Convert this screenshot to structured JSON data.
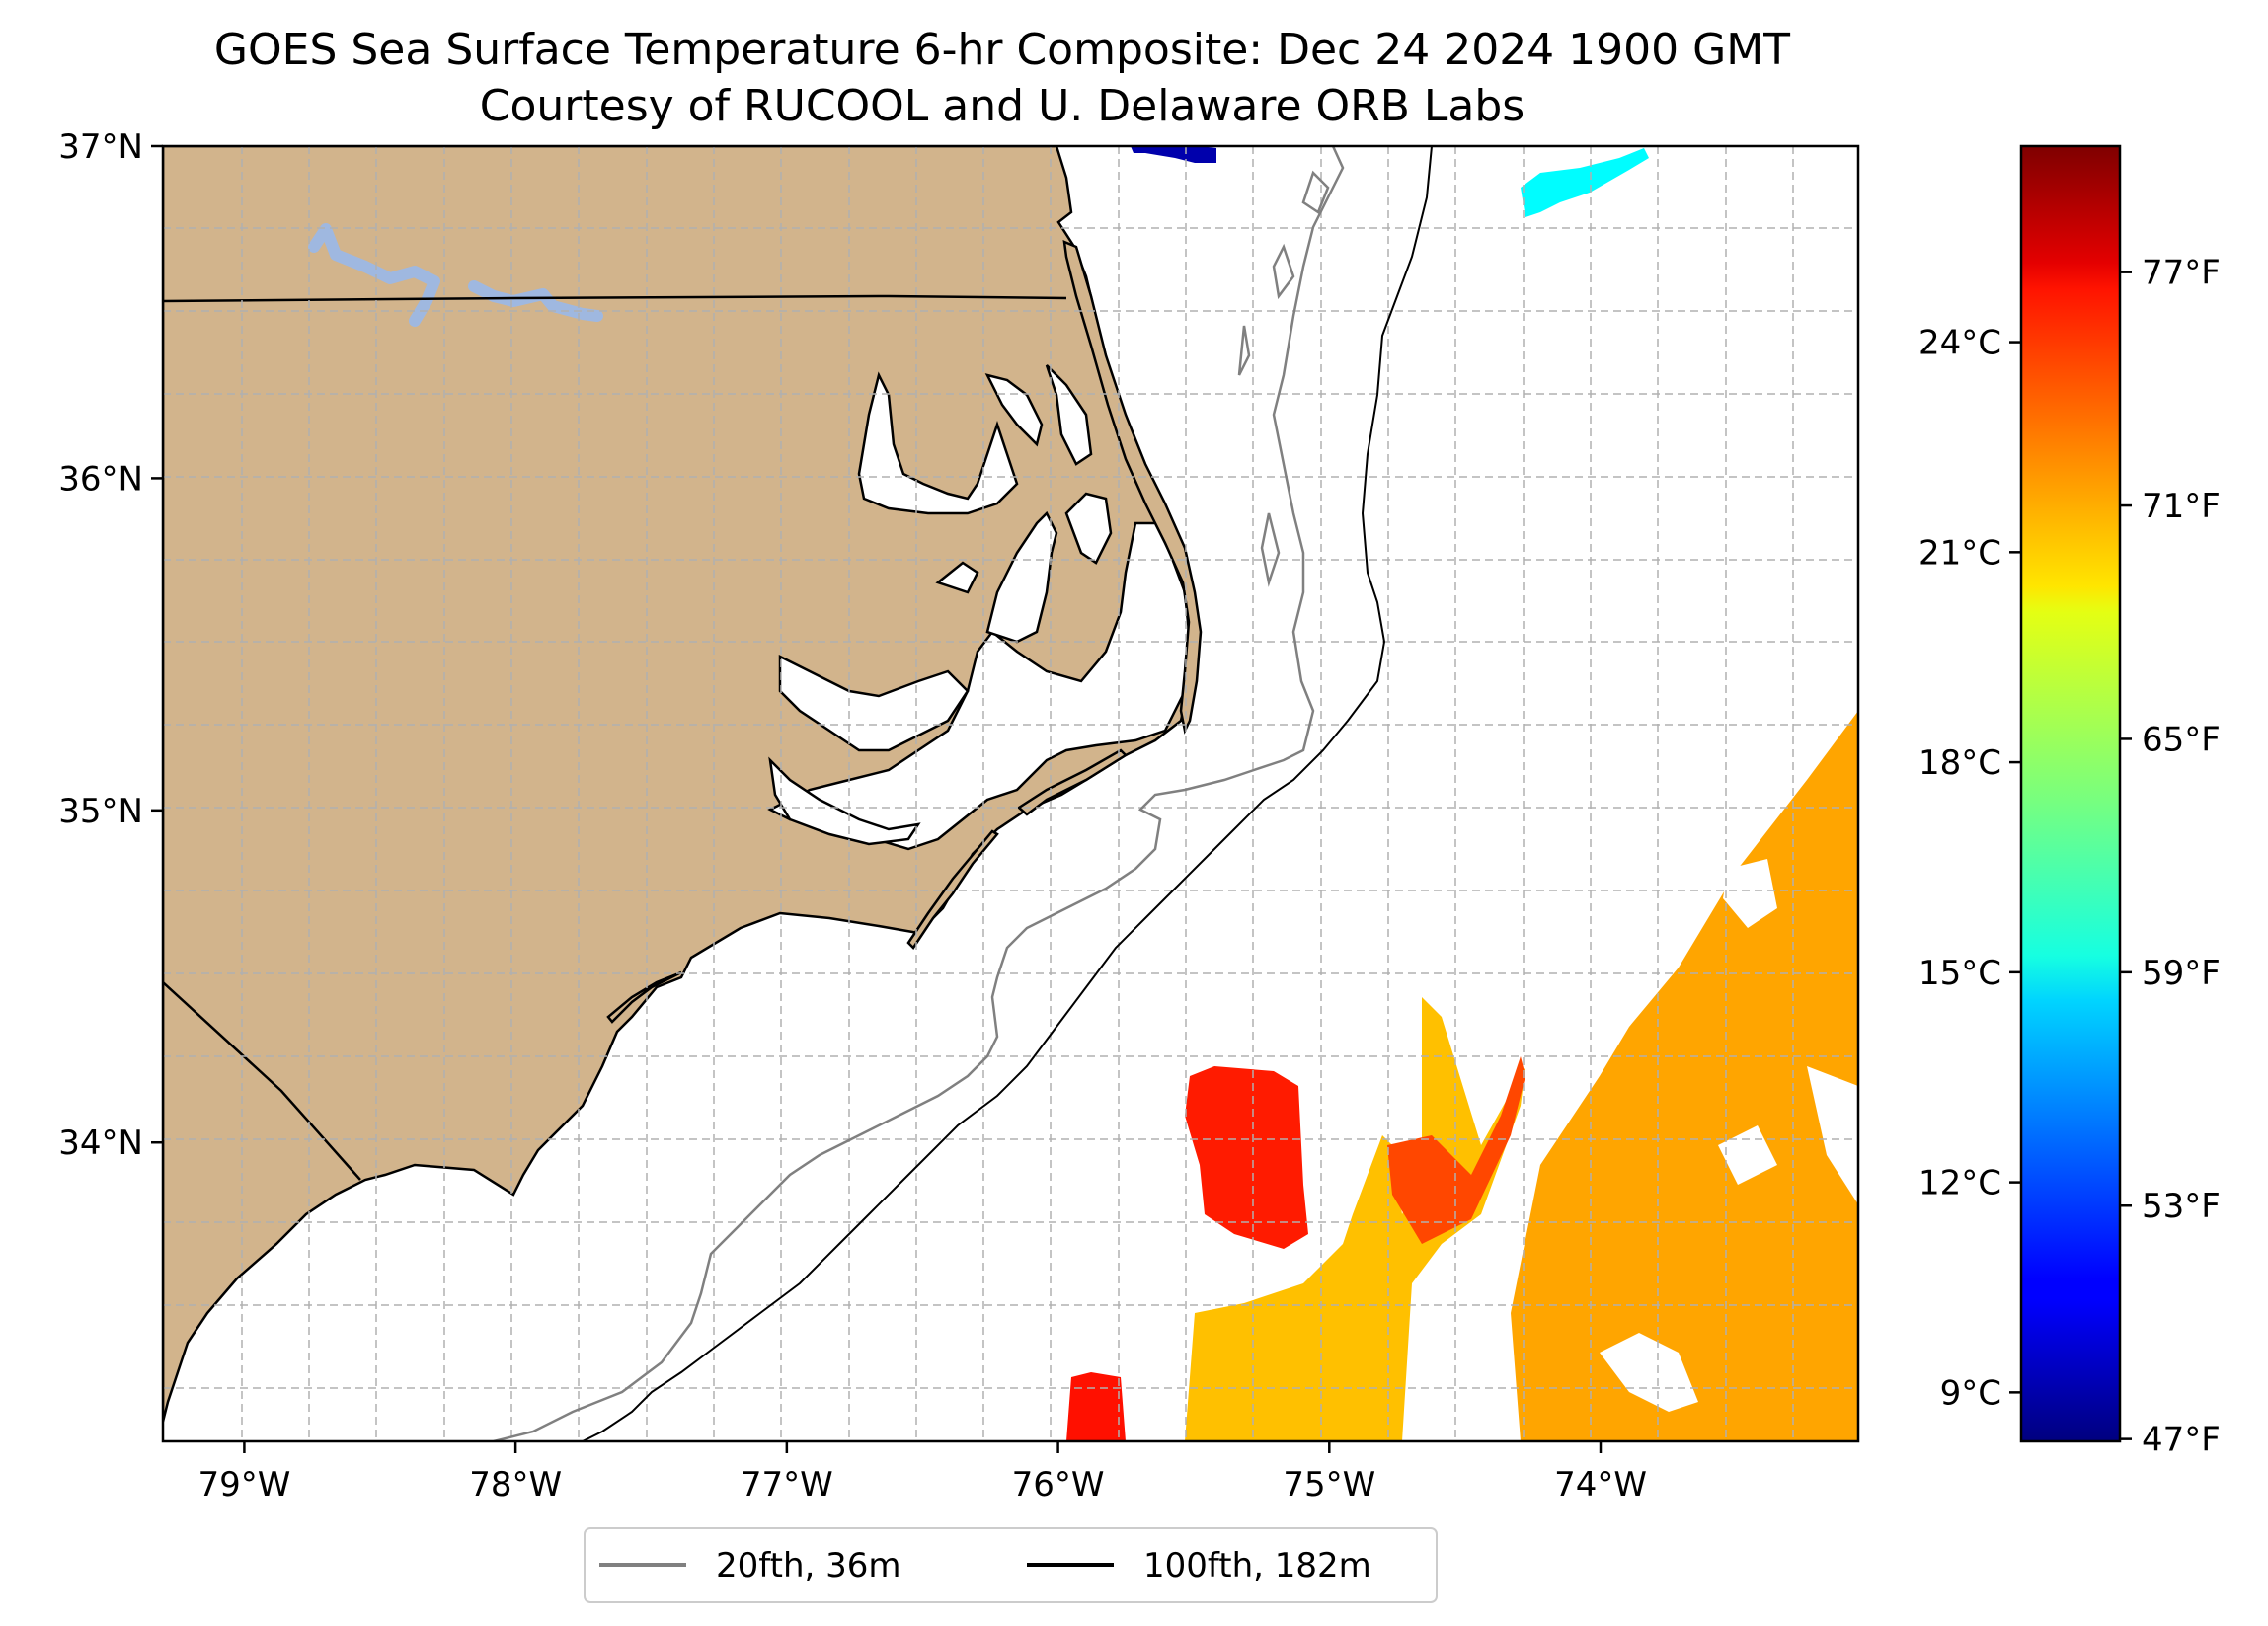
{
  "title": {
    "line1": "GOES Sea Surface Temperature 6-hr Composite: Dec 24 2024 1900 GMT",
    "line2": "Courtesy of RUCOOL and U. Delaware ORB Labs"
  },
  "axes": {
    "lon_range": [
      -79.3,
      -73.05
    ],
    "lat_range": [
      33.1,
      37.0
    ],
    "x_ticks": [
      {
        "value": -79,
        "label": "79°W"
      },
      {
        "value": -78,
        "label": "78°W"
      },
      {
        "value": -77,
        "label": "77°W"
      },
      {
        "value": -76,
        "label": "76°W"
      },
      {
        "value": -75,
        "label": "75°W"
      },
      {
        "value": -74,
        "label": "74°W"
      }
    ],
    "y_ticks": [
      {
        "value": 37,
        "label": "37°N"
      },
      {
        "value": 36,
        "label": "36°N"
      },
      {
        "value": 35,
        "label": "35°N"
      },
      {
        "value": 34,
        "label": "34°N"
      }
    ],
    "gridlines": true
  },
  "legend": {
    "items": [
      {
        "label": "20fth, 36m",
        "color": "#808080"
      },
      {
        "label": "100fth, 182m",
        "color": "#000000"
      }
    ]
  },
  "colorbar": {
    "cmap": "jet",
    "celsius": {
      "range": [
        8.3,
        26.8
      ],
      "ticks": [
        {
          "value": 9,
          "label": "9°C"
        },
        {
          "value": 12,
          "label": "12°C"
        },
        {
          "value": 15,
          "label": "15°C"
        },
        {
          "value": 18,
          "label": "18°C"
        },
        {
          "value": 21,
          "label": "21°C"
        },
        {
          "value": 24,
          "label": "24°C"
        }
      ]
    },
    "fahrenheit": {
      "ticks": [
        {
          "value": 47,
          "label": "47°F"
        },
        {
          "value": 53,
          "label": "53°F"
        },
        {
          "value": 59,
          "label": "59°F"
        },
        {
          "value": 65,
          "label": "65°F"
        },
        {
          "value": 71,
          "label": "71°F"
        },
        {
          "value": 77,
          "label": "77°F"
        }
      ]
    }
  },
  "colors": {
    "land": "#d2b48c",
    "lakes": "#9fb8e0",
    "isobath_20fth": "#808080",
    "isobath_100fth": "#000000"
  },
  "chart_data": {
    "type": "heatmap",
    "variable": "sea surface temperature",
    "units": "°C",
    "sst_patches": [
      {
        "name": "gulf-stream-eastern",
        "temp_c": 21.5
      },
      {
        "name": "gulf-stream-south-band",
        "temp_c": 21.0
      },
      {
        "name": "warm-core-central",
        "temp_c": 24.0
      },
      {
        "name": "warm-core-east-tongue",
        "temp_c": 23.2
      },
      {
        "name": "warm-core-south",
        "temp_c": 24.2
      },
      {
        "name": "cold-north-patch-a",
        "temp_c": 8.8
      },
      {
        "name": "cold-north-patch-b",
        "temp_c": 9.1
      },
      {
        "name": "cool-northeast-patch",
        "temp_c": 15.2
      }
    ]
  }
}
